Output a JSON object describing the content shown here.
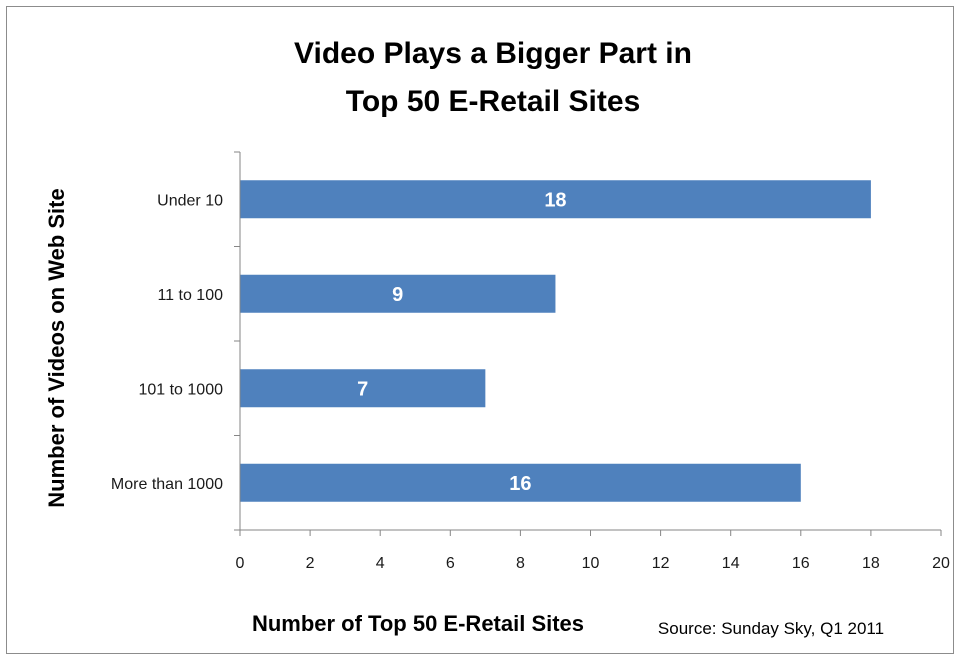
{
  "chart_data": {
    "type": "bar",
    "orientation": "horizontal",
    "title": [
      "Video Plays a Bigger Part in",
      "Top 50 E-Retail Sites"
    ],
    "xlabel": "Number of Top 50 E-Retail Sites",
    "ylabel": "Number of Videos on Web Site",
    "categories": [
      "Under 10",
      "11 to 100",
      "101 to 1000",
      "More than 1000"
    ],
    "values": [
      18,
      9,
      7,
      16
    ],
    "xlim": [
      0,
      20
    ],
    "xticks": [
      0,
      2,
      4,
      6,
      8,
      10,
      12,
      14,
      16,
      18,
      20
    ],
    "grid": false,
    "bar_color": "#4f81bd",
    "source": "Source: Sunday Sky, Q1 2011"
  }
}
